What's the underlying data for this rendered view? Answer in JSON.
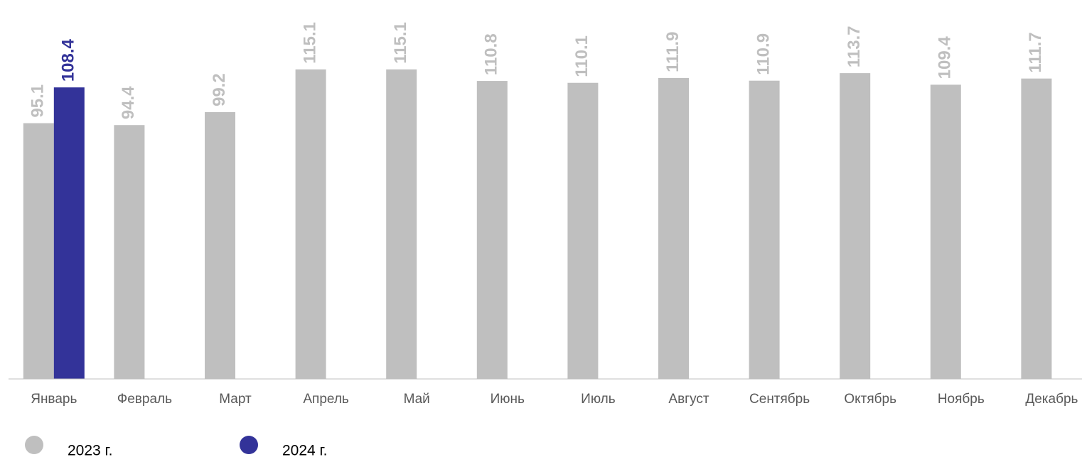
{
  "chart_data": {
    "type": "bar",
    "categories": [
      "Январь",
      "Февраль",
      "Март",
      "Апрель",
      "Май",
      "Июнь",
      "Июль",
      "Август",
      "Сентябрь",
      "Октябрь",
      "Ноябрь",
      "Декабрь"
    ],
    "series": [
      {
        "name": "2023 г.",
        "color": "#bfbfbf",
        "values": [
          95.1,
          94.4,
          99.2,
          115.1,
          115.1,
          110.8,
          110.1,
          111.9,
          110.9,
          113.7,
          109.4,
          111.7
        ]
      },
      {
        "name": "2024 г.",
        "color": "#333399",
        "values": [
          108.4,
          null,
          null,
          null,
          null,
          null,
          null,
          null,
          null,
          null,
          null,
          null
        ]
      }
    ],
    "ylim": [
      0,
      120
    ],
    "legend": "bottom"
  }
}
